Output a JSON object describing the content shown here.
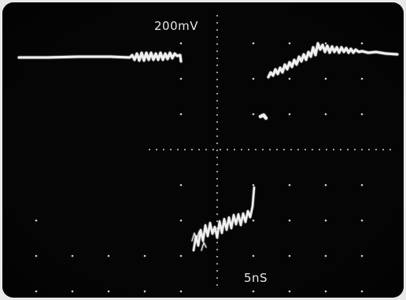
{
  "scope": {
    "vertical_scale_label": "200mV",
    "time_scale_label": "5nS",
    "colors": {
      "screen": "#050505",
      "bezel": "#e9e9e9",
      "trace": "#f0f0f0",
      "graticule": "#cfcfcf"
    }
  }
}
